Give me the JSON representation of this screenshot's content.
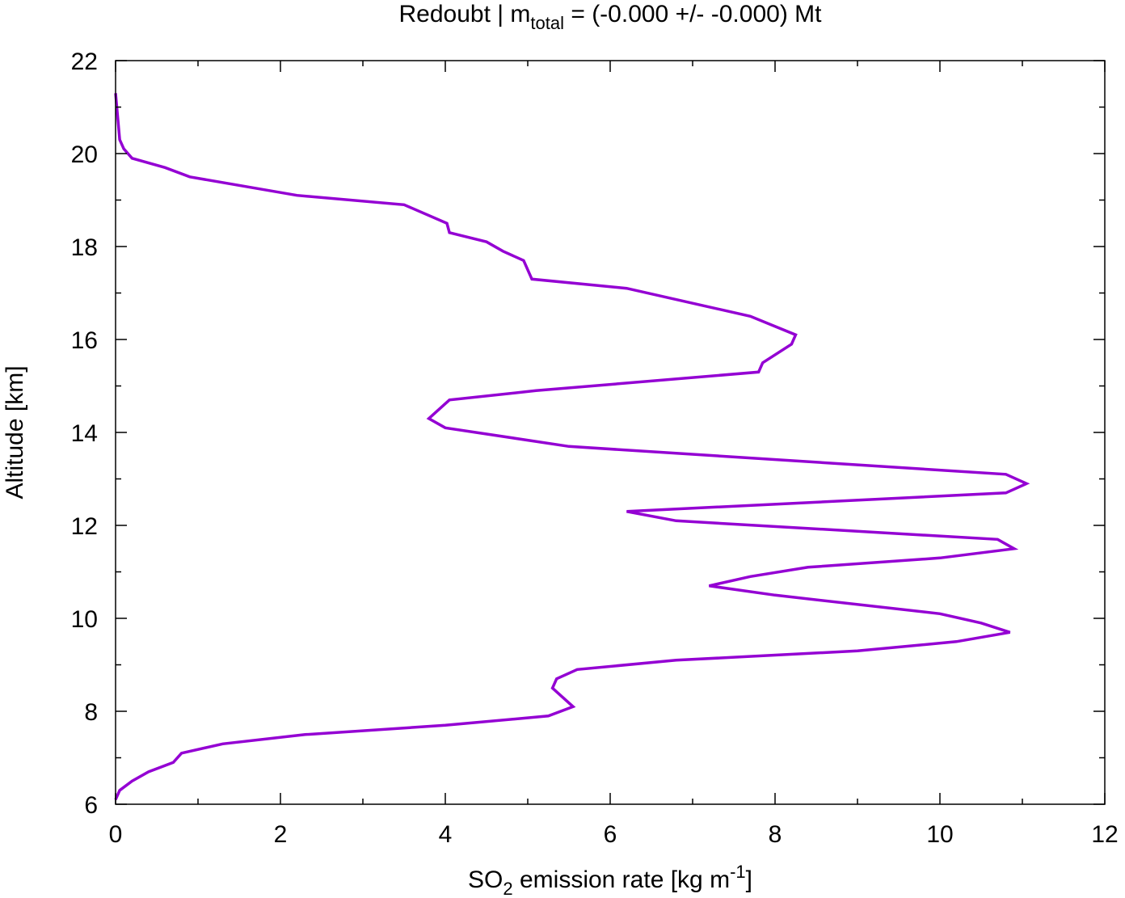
{
  "chart_data": {
    "type": "line",
    "title": {
      "prefix": "Redoubt | m",
      "subscript": "total",
      "suffix": " = (-0.000 +/- -0.000) Mt"
    },
    "xlabel": {
      "prefix": "SO",
      "subscript": "2",
      "middle": " emission rate [kg m",
      "superscript": "-1",
      "suffix": "]"
    },
    "ylabel": "Altitude [km]",
    "xlim": [
      0,
      12
    ],
    "ylim": [
      6,
      22
    ],
    "x_ticks": [
      0,
      2,
      4,
      6,
      8,
      10,
      12
    ],
    "y_ticks": [
      6,
      8,
      10,
      12,
      14,
      16,
      18,
      20,
      22
    ],
    "x_tick_labels": [
      "0",
      "2",
      "4",
      "6",
      "8",
      "10",
      "12"
    ],
    "y_tick_labels": [
      "6",
      "8",
      "10",
      "12",
      "14",
      "16",
      "18",
      "20",
      "22"
    ],
    "grid": false,
    "legend": "none",
    "series": [
      {
        "color": "#9400d3",
        "x": [
          0.0,
          0.05,
          0.2,
          0.4,
          0.7,
          0.8,
          1.3,
          2.3,
          4.0,
          5.25,
          5.55,
          5.3,
          5.35,
          5.6,
          6.8,
          9.0,
          10.2,
          10.85,
          10.5,
          10.0,
          8.0,
          7.2,
          7.7,
          8.4,
          10.0,
          10.9,
          10.7,
          6.8,
          6.2,
          10.8,
          11.05,
          10.8,
          5.5,
          4.0,
          3.8,
          4.05,
          5.1,
          7.8,
          7.85,
          8.2,
          8.25,
          7.7,
          6.2,
          5.05,
          4.95,
          4.7,
          4.5,
          4.05,
          4.02,
          3.5,
          2.2,
          0.9,
          0.6,
          0.2,
          0.1,
          0.05,
          0.0
        ],
        "y": [
          6.1,
          6.3,
          6.5,
          6.7,
          6.9,
          7.1,
          7.3,
          7.5,
          7.7,
          7.9,
          8.1,
          8.5,
          8.7,
          8.9,
          9.1,
          9.3,
          9.5,
          9.7,
          9.9,
          10.1,
          10.5,
          10.7,
          10.9,
          11.1,
          11.3,
          11.5,
          11.7,
          12.1,
          12.3,
          12.7,
          12.9,
          13.1,
          13.7,
          14.1,
          14.3,
          14.7,
          14.9,
          15.3,
          15.5,
          15.9,
          16.1,
          16.5,
          17.1,
          17.3,
          17.7,
          17.9,
          18.1,
          18.3,
          18.5,
          18.9,
          19.1,
          19.5,
          19.7,
          19.9,
          20.1,
          20.3,
          21.3
        ]
      }
    ]
  }
}
